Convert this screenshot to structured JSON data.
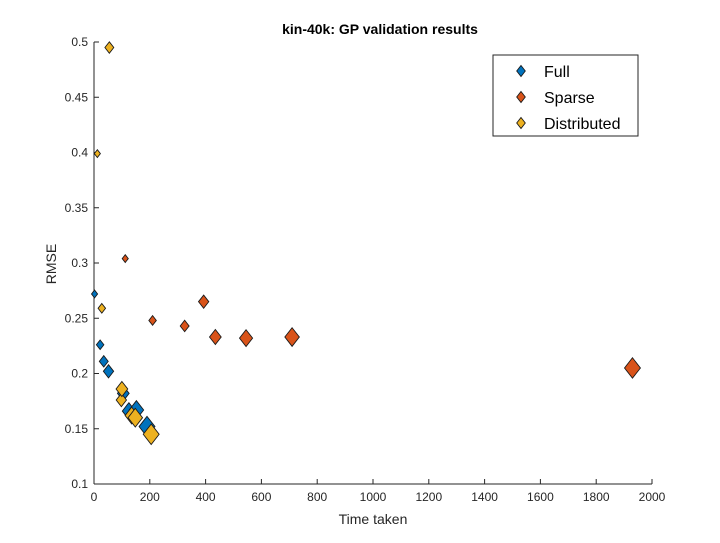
{
  "chart_data": {
    "type": "scatter",
    "title": "kin-40k: GP validation results",
    "xlabel": "Time taken",
    "ylabel": "RMSE",
    "xlim": [
      0,
      2000
    ],
    "ylim": [
      0.1,
      0.5
    ],
    "xticks": [
      0,
      200,
      400,
      600,
      800,
      1000,
      1200,
      1400,
      1600,
      1800,
      2000
    ],
    "yticks": [
      0.1,
      0.15,
      0.2,
      0.25,
      0.3,
      0.35,
      0.4,
      0.45,
      0.5
    ],
    "xtick_labels": [
      "0",
      "200",
      "400",
      "600",
      "800",
      "1000",
      "1200",
      "1400",
      "1600",
      "1800",
      "2000"
    ],
    "ytick_labels": [
      "0.1",
      "0.15",
      "0.2",
      "0.25",
      "0.3",
      "0.35",
      "0.4",
      "0.45",
      "0.5"
    ],
    "grid": false,
    "marker": "diamond",
    "legend_position": "top-right",
    "series": [
      {
        "name": "Full",
        "color": "#0072BD",
        "points": [
          {
            "x": 2,
            "y": 0.272,
            "size": 1
          },
          {
            "x": 22,
            "y": 0.226,
            "size": 2
          },
          {
            "x": 35,
            "y": 0.211,
            "size": 3
          },
          {
            "x": 52,
            "y": 0.202,
            "size": 4
          },
          {
            "x": 105,
            "y": 0.182,
            "size": 5
          },
          {
            "x": 125,
            "y": 0.166,
            "size": 6
          },
          {
            "x": 152,
            "y": 0.167,
            "size": 7
          },
          {
            "x": 190,
            "y": 0.152,
            "size": 8
          }
        ]
      },
      {
        "name": "Sparse",
        "color": "#D95319",
        "points": [
          {
            "x": 112,
            "y": 0.304,
            "size": 1
          },
          {
            "x": 210,
            "y": 0.248,
            "size": 2
          },
          {
            "x": 325,
            "y": 0.243,
            "size": 3
          },
          {
            "x": 393,
            "y": 0.265,
            "size": 4
          },
          {
            "x": 435,
            "y": 0.233,
            "size": 5
          },
          {
            "x": 545,
            "y": 0.232,
            "size": 6
          },
          {
            "x": 710,
            "y": 0.233,
            "size": 7
          },
          {
            "x": 1930,
            "y": 0.205,
            "size": 8
          }
        ]
      },
      {
        "name": "Distributed",
        "color": "#EDB120",
        "points": [
          {
            "x": 12,
            "y": 0.399,
            "size": 1
          },
          {
            "x": 28,
            "y": 0.259,
            "size": 2
          },
          {
            "x": 55,
            "y": 0.495,
            "size": 3
          },
          {
            "x": 98,
            "y": 0.176,
            "size": 4
          },
          {
            "x": 100,
            "y": 0.186,
            "size": 5
          },
          {
            "x": 135,
            "y": 0.162,
            "size": 6
          },
          {
            "x": 148,
            "y": 0.16,
            "size": 7
          },
          {
            "x": 205,
            "y": 0.145,
            "size": 8
          }
        ]
      }
    ]
  }
}
